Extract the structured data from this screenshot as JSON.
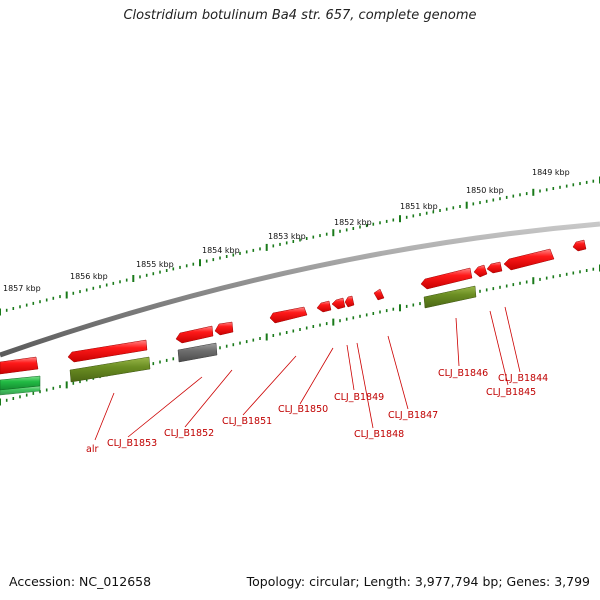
{
  "title": "Clostridium botulinum Ba4 str. 657, complete genome",
  "footer": {
    "accession": "Accession: NC_012658",
    "summary": "Topology: circular; Length: 3,977,794 bp; Genes: 3,799"
  },
  "scale_labels": [
    "1857 kbp",
    "1856 kbp",
    "1855 kbp",
    "1854 kbp",
    "1853 kbp",
    "1852 kbp",
    "1851 kbp",
    "1850 kbp",
    "1849 kbp"
  ],
  "gene_labels": [
    "alr",
    "CLJ_B1853",
    "CLJ_B1852",
    "CLJ_B1851",
    "CLJ_B1850",
    "CLJ_B1849",
    "CLJ_B1848",
    "CLJ_B1847",
    "CLJ_B1846",
    "CLJ_B1845",
    "CLJ_B1844"
  ],
  "colors": {
    "gene_cds": "#ff1a1a",
    "gene_olive": "#6b8e23",
    "gene_gray": "#6e6e6e",
    "gene_green": "#22bb44",
    "backbone": "#888888",
    "tick": "#1a7a1a",
    "label": "#c00000"
  }
}
